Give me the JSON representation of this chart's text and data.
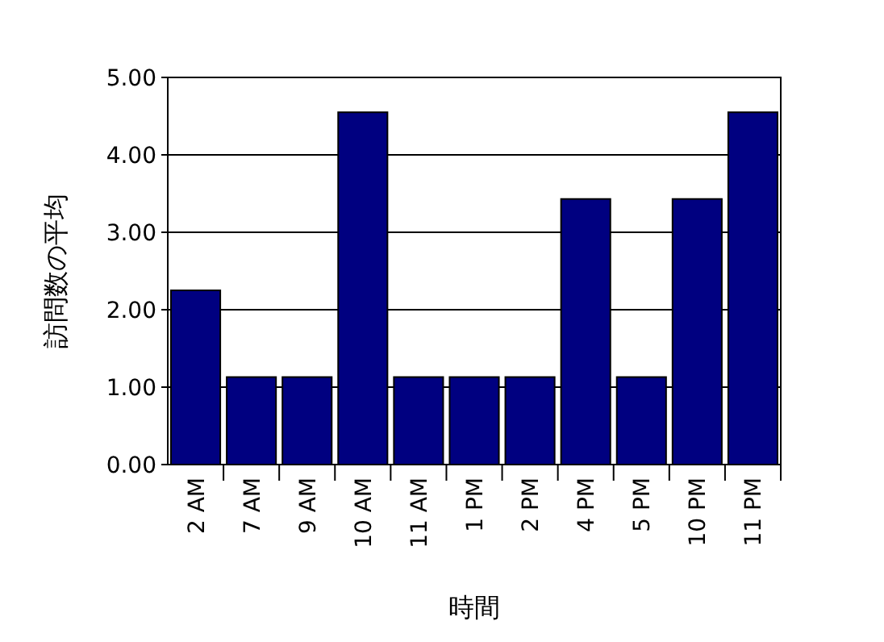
{
  "chart_data": {
    "type": "bar",
    "xlabel": "時間",
    "ylabel": "訪問数の平均",
    "categories": [
      "2 AM",
      "7 AM",
      "9 AM",
      "10 AM",
      "11 AM",
      "1 PM",
      "2 PM",
      "4 PM",
      "5 PM",
      "10 PM",
      "11 PM"
    ],
    "values": [
      2.25,
      1.13,
      1.13,
      4.55,
      1.13,
      1.13,
      1.13,
      3.43,
      1.13,
      3.43,
      4.55
    ],
    "color": "#000080",
    "ylim": [
      0,
      5
    ],
    "yticks": [
      {
        "value": 0,
        "label": "0.00"
      },
      {
        "value": 1,
        "label": "1.00"
      },
      {
        "value": 2,
        "label": "2.00"
      },
      {
        "value": 3,
        "label": "3.00"
      },
      {
        "value": 4,
        "label": "4.00"
      },
      {
        "value": 5,
        "label": "5.00"
      }
    ],
    "grid": "y"
  }
}
